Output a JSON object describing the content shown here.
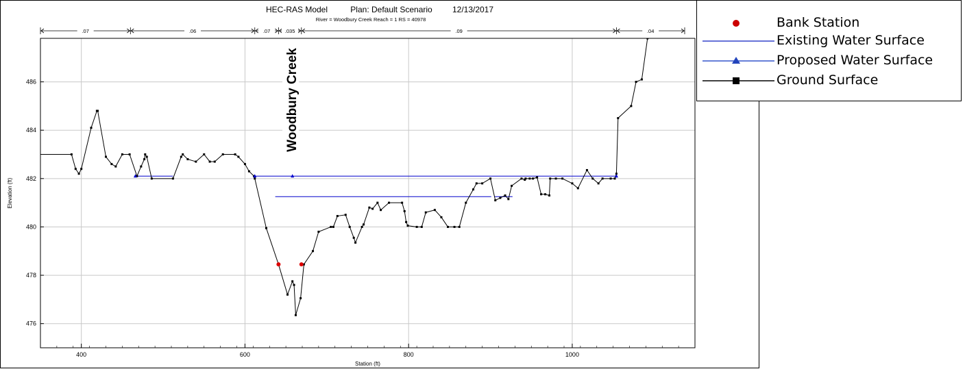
{
  "chart_data": {
    "type": "line",
    "title": "HEC-RAS Model",
    "plan": "Plan: Default Scenario",
    "date": "12/13/2017",
    "subtitle": "River = Woodbury Creek   Reach = 1     RS = 40978",
    "xlabel": "Station (ft)",
    "ylabel": "Elevation (ft)",
    "annotation": "Woodbury Creek",
    "xlim": [
      350,
      1150
    ],
    "ylim": [
      475,
      487.8
    ],
    "xticks": [
      400,
      600,
      800,
      1000
    ],
    "yticks": [
      476,
      478,
      480,
      482,
      484,
      486
    ],
    "grid": true,
    "legend_position": "outside-right",
    "manning_n": [
      {
        "label": ".07",
        "from": 350,
        "to": 460
      },
      {
        "label": ".06",
        "from": 460,
        "to": 612
      },
      {
        "label": ".07",
        "from": 612,
        "to": 641
      },
      {
        "label": ".035",
        "from": 641,
        "to": 669
      },
      {
        "label": ".09",
        "from": 669,
        "to": 1054
      },
      {
        "label": ".04",
        "from": 1054,
        "to": 1150
      }
    ],
    "series": [
      {
        "name": "Ground Surface",
        "color": "#000000",
        "marker": "square",
        "x": [
          350,
          388,
          393,
          397,
          400,
          412,
          419,
          420,
          430,
          437,
          442,
          450,
          459,
          468,
          473,
          477,
          478,
          480,
          486,
          512,
          522,
          524,
          530,
          540,
          550,
          557,
          563,
          573,
          588,
          592,
          600,
          605,
          611,
          612,
          626,
          641,
          652,
          658,
          660,
          662,
          668,
          672,
          683,
          690,
          705,
          708,
          713,
          723,
          728,
          733,
          735,
          743,
          745,
          752,
          756,
          762,
          766,
          776,
          792,
          795,
          797,
          799,
          810,
          816,
          821,
          832,
          840,
          848,
          856,
          862,
          870,
          879,
          883,
          890,
          900,
          906,
          912,
          918,
          922,
          926,
          938,
          942,
          943,
          948,
          952,
          957,
          962,
          967,
          972,
          973,
          980,
          988,
          1000,
          1007,
          1018,
          1025,
          1032,
          1037,
          1047,
          1052,
          1054,
          1056,
          1072,
          1078,
          1085,
          1092,
          1100,
          1150
        ],
        "y": [
          483.0,
          483.0,
          482.4,
          482.2,
          482.4,
          484.1,
          484.8,
          484.8,
          482.9,
          482.6,
          482.5,
          483.0,
          483.0,
          482.1,
          482.5,
          482.8,
          483.0,
          482.9,
          482.0,
          482.0,
          482.9,
          483.0,
          482.8,
          482.7,
          483.0,
          482.7,
          482.7,
          483.0,
          483.0,
          482.9,
          482.6,
          482.3,
          482.1,
          482.0,
          479.95,
          478.45,
          477.2,
          477.75,
          477.6,
          476.35,
          477.05,
          478.45,
          479.0,
          479.8,
          480.0,
          480.0,
          480.45,
          480.5,
          480.0,
          479.55,
          479.35,
          480.0,
          480.1,
          480.8,
          480.75,
          481.0,
          480.7,
          481.0,
          481.0,
          480.65,
          480.2,
          480.05,
          480.0,
          480.0,
          480.6,
          480.7,
          480.4,
          480.0,
          480.0,
          480.0,
          481.0,
          481.55,
          481.8,
          481.8,
          482.0,
          481.1,
          481.2,
          481.3,
          481.15,
          481.7,
          482.0,
          481.95,
          482.0,
          482.0,
          482.0,
          482.05,
          481.35,
          481.35,
          481.3,
          482.0,
          482.0,
          482.0,
          481.8,
          481.6,
          482.35,
          482.0,
          481.8,
          482.0,
          482.0,
          482.0,
          482.2,
          484.5,
          485.0,
          486.0,
          486.1,
          487.8,
          487.8,
          487.8
        ]
      },
      {
        "name": "Existing Water Surface",
        "color": "#0000cc",
        "marker": "none",
        "segments": [
          {
            "x": [
              637,
              901
            ],
            "y": [
              481.25,
              481.25
            ]
          },
          {
            "x": [
              905,
              927
            ],
            "y": [
              481.25,
              481.25
            ]
          }
        ]
      },
      {
        "name": "Proposed Water Surface",
        "color": "#0000cc",
        "marker": "triangle",
        "segments": [
          {
            "x": [
              466,
              512
            ],
            "y": [
              482.1,
              482.1
            ]
          },
          {
            "x": [
              612,
              1054
            ],
            "y": [
              482.1,
              482.1
            ]
          }
        ],
        "markers": {
          "x": [
            466,
            612,
            658,
            1054
          ],
          "y": [
            482.1,
            482.1,
            482.1,
            482.1
          ]
        }
      },
      {
        "name": "Bank Station",
        "color": "#dd0000",
        "marker": "circle",
        "x": [
          641,
          669
        ],
        "y": [
          478.45,
          478.45
        ]
      }
    ]
  },
  "legend": {
    "items": [
      {
        "label": "Bank Station",
        "kind": "dot",
        "color": "#cc0000"
      },
      {
        "label": "Existing Water Surface",
        "kind": "line",
        "color": "#3344cc"
      },
      {
        "label": "Proposed Water Surface",
        "kind": "line-triangle",
        "color": "#3355cc"
      },
      {
        "label": "Ground Surface",
        "kind": "line-square",
        "color": "#000000"
      }
    ]
  }
}
